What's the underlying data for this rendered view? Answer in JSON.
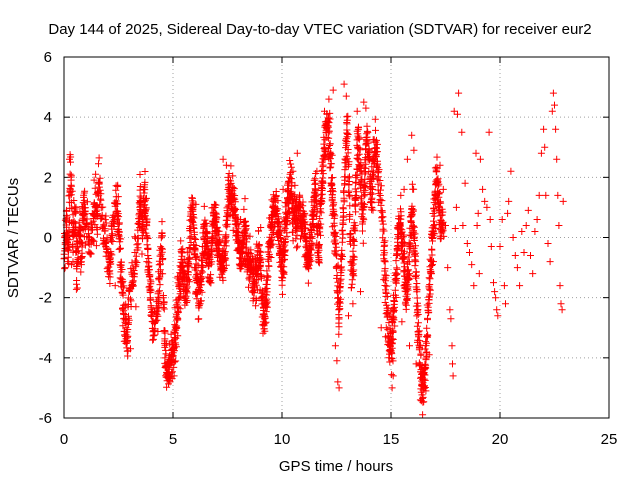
{
  "chart_data": {
    "type": "scatter",
    "title": "Day 144 of 2025, Sidereal Day-to-day VTEC variation (SDTVAR) for receiver eur2",
    "xlabel": "GPS time / hours",
    "ylabel": "SDTVAR / TECUs",
    "xlim": [
      0,
      25
    ],
    "ylim": [
      -6,
      6
    ],
    "xticks": [
      0,
      5,
      10,
      15,
      20,
      25
    ],
    "yticks": [
      -6,
      -4,
      -2,
      0,
      2,
      4,
      6
    ],
    "grid": true,
    "marker": "plus",
    "series": [
      {
        "name": "SDTVAR",
        "color": "#ff0000",
        "trace": [
          [
            0.0,
            -0.8
          ],
          [
            0.1,
            0.5
          ],
          [
            0.2,
            -0.5
          ],
          [
            0.3,
            2.5
          ],
          [
            0.4,
            -0.2
          ],
          [
            0.5,
            0.8
          ],
          [
            0.6,
            -1.0
          ],
          [
            0.7,
            0.3
          ],
          [
            0.8,
            -0.6
          ],
          [
            0.9,
            1.2
          ],
          [
            1.0,
            0.5
          ],
          [
            1.2,
            -0.2
          ],
          [
            1.4,
            1.0
          ],
          [
            1.5,
            0.6
          ],
          [
            1.6,
            1.8
          ],
          [
            1.8,
            0.3
          ],
          [
            2.0,
            -0.7
          ],
          [
            2.1,
            -1.2
          ],
          [
            2.2,
            0.2
          ],
          [
            2.4,
            1.4
          ],
          [
            2.5,
            0.4
          ],
          [
            2.6,
            -1.0
          ],
          [
            2.7,
            -2.2
          ],
          [
            2.8,
            -3.0
          ],
          [
            2.9,
            -3.6
          ],
          [
            3.0,
            -2.0
          ],
          [
            3.2,
            -1.2
          ],
          [
            3.4,
            0.0
          ],
          [
            3.5,
            1.2
          ],
          [
            3.6,
            0.3
          ],
          [
            3.7,
            1.4
          ],
          [
            3.8,
            0.2
          ],
          [
            3.9,
            -1.2
          ],
          [
            4.0,
            -2.2
          ],
          [
            4.1,
            -3.0
          ],
          [
            4.3,
            -2.4
          ],
          [
            4.4,
            -1.0
          ],
          [
            4.5,
            0.0
          ],
          [
            4.6,
            -3.2
          ],
          [
            4.7,
            -4.3
          ],
          [
            4.8,
            -4.5
          ],
          [
            4.9,
            -4.2
          ],
          [
            5.0,
            -3.8
          ],
          [
            5.1,
            -3.2
          ],
          [
            5.2,
            -2.4
          ],
          [
            5.3,
            -1.6
          ],
          [
            5.4,
            -0.6
          ],
          [
            5.5,
            -1.5
          ],
          [
            5.6,
            -2.0
          ],
          [
            5.7,
            -1.0
          ],
          [
            5.8,
            0.4
          ],
          [
            5.9,
            1.0
          ],
          [
            6.0,
            -0.4
          ],
          [
            6.1,
            -1.6
          ],
          [
            6.2,
            -2.0
          ],
          [
            6.3,
            -1.2
          ],
          [
            6.4,
            -0.2
          ],
          [
            6.5,
            0.3
          ],
          [
            6.6,
            -0.5
          ],
          [
            6.7,
            -1.2
          ],
          [
            6.8,
            0.2
          ],
          [
            6.9,
            0.8
          ],
          [
            7.0,
            0.0
          ],
          [
            7.1,
            -0.3
          ],
          [
            7.2,
            -0.8
          ],
          [
            7.3,
            -1.0
          ],
          [
            7.4,
            -0.4
          ],
          [
            7.5,
            0.8
          ],
          [
            7.6,
            1.8
          ],
          [
            7.7,
            1.0
          ],
          [
            7.8,
            1.3
          ],
          [
            7.9,
            0.5
          ],
          [
            8.0,
            -0.3
          ],
          [
            8.1,
            -0.8
          ],
          [
            8.2,
            -0.2
          ],
          [
            8.3,
            0.3
          ],
          [
            8.4,
            -0.6
          ],
          [
            8.5,
            -1.0
          ],
          [
            8.6,
            -0.8
          ],
          [
            8.7,
            -1.6
          ],
          [
            8.8,
            -1.2
          ],
          [
            8.9,
            -0.8
          ],
          [
            9.0,
            -0.5
          ],
          [
            9.1,
            -2.2
          ],
          [
            9.2,
            -2.7
          ],
          [
            9.3,
            -1.6
          ],
          [
            9.4,
            -0.5
          ],
          [
            9.5,
            0.3
          ],
          [
            9.6,
            0.8
          ],
          [
            9.7,
            1.3
          ],
          [
            9.8,
            0.4
          ],
          [
            9.9,
            -0.4
          ],
          [
            10.0,
            -1.2
          ],
          [
            10.1,
            -0.5
          ],
          [
            10.2,
            0.6
          ],
          [
            10.3,
            1.4
          ],
          [
            10.4,
            1.8
          ],
          [
            10.5,
            0.6
          ],
          [
            10.6,
            1.0
          ],
          [
            10.7,
            0.4
          ],
          [
            10.8,
            1.2
          ],
          [
            10.9,
            0.2
          ],
          [
            11.0,
            0.6
          ],
          [
            11.1,
            -0.2
          ],
          [
            11.2,
            -0.8
          ],
          [
            11.3,
            -0.2
          ],
          [
            11.4,
            0.6
          ],
          [
            11.5,
            1.6
          ],
          [
            11.6,
            0.8
          ],
          [
            11.7,
            -0.6
          ],
          [
            11.8,
            1.4
          ],
          [
            11.9,
            2.4
          ],
          [
            12.0,
            3.4
          ],
          [
            12.1,
            3.9
          ],
          [
            12.2,
            2.8
          ],
          [
            12.3,
            1.6
          ],
          [
            12.4,
            0.4
          ],
          [
            12.5,
            -0.8
          ],
          [
            12.6,
            -2.6
          ],
          [
            12.7,
            -1.2
          ],
          [
            12.8,
            0.6
          ],
          [
            12.9,
            2.6
          ],
          [
            13.0,
            3.6
          ],
          [
            13.1,
            1.0
          ],
          [
            13.2,
            -1.4
          ],
          [
            13.3,
            -0.4
          ],
          [
            13.4,
            1.8
          ],
          [
            13.5,
            3.4
          ],
          [
            13.6,
            2.2
          ],
          [
            13.7,
            0.6
          ],
          [
            13.8,
            2.0
          ],
          [
            13.9,
            3.6
          ],
          [
            14.0,
            2.4
          ],
          [
            14.1,
            1.0
          ],
          [
            14.2,
            2.4
          ],
          [
            14.3,
            3.2
          ],
          [
            14.4,
            2.0
          ],
          [
            14.6,
            0.6
          ],
          [
            14.7,
            -0.6
          ],
          [
            14.8,
            -2.2
          ],
          [
            14.9,
            -3.2
          ],
          [
            15.0,
            -3.7
          ],
          [
            15.1,
            -3.0
          ],
          [
            15.2,
            -1.6
          ],
          [
            15.3,
            -0.4
          ],
          [
            15.4,
            0.8
          ],
          [
            15.5,
            0.0
          ],
          [
            15.6,
            -1.0
          ],
          [
            15.7,
            -2.0
          ],
          [
            15.8,
            -1.4
          ],
          [
            15.9,
            0.2
          ],
          [
            16.0,
            1.0
          ],
          [
            16.1,
            -0.6
          ],
          [
            16.2,
            -2.2
          ],
          [
            16.3,
            -3.6
          ],
          [
            16.4,
            -4.6
          ],
          [
            16.5,
            -5.2
          ],
          [
            16.6,
            -4.0
          ],
          [
            16.7,
            -2.6
          ],
          [
            16.8,
            -1.2
          ],
          [
            16.9,
            -0.2
          ],
          [
            17.0,
            1.0
          ],
          [
            17.1,
            2.0
          ],
          [
            17.2,
            1.2
          ],
          [
            17.3,
            0.2
          ],
          [
            17.4,
            0.6
          ]
        ],
        "scatter": [
          [
            0.05,
            -1.0
          ],
          [
            0.12,
            0.9
          ],
          [
            0.25,
            2.6
          ],
          [
            0.35,
            -0.9
          ],
          [
            0.55,
            1.0
          ],
          [
            0.8,
            -0.9
          ],
          [
            1.45,
            2.1
          ],
          [
            1.9,
            -0.2
          ],
          [
            2.35,
            -1.6
          ],
          [
            3.05,
            -3.7
          ],
          [
            3.3,
            -2.3
          ],
          [
            3.65,
            1.6
          ],
          [
            4.2,
            -2.8
          ],
          [
            5.05,
            -4.6
          ],
          [
            5.65,
            -2.1
          ],
          [
            6.05,
            1.1
          ],
          [
            6.3,
            -2.1
          ],
          [
            6.9,
            1.1
          ],
          [
            7.3,
            2.6
          ],
          [
            7.45,
            2.4
          ],
          [
            7.55,
            1.9
          ],
          [
            8.1,
            0.6
          ],
          [
            9.15,
            -2.8
          ],
          [
            9.6,
            1.2
          ],
          [
            10.05,
            1.6
          ],
          [
            10.5,
            2.2
          ],
          [
            10.7,
            2.8
          ],
          [
            11.3,
            0.0
          ],
          [
            11.6,
            2.2
          ],
          [
            11.95,
            4.2
          ],
          [
            12.15,
            4.6
          ],
          [
            12.35,
            4.9
          ],
          [
            12.45,
            -3.6
          ],
          [
            12.52,
            -4.1
          ],
          [
            12.56,
            -4.8
          ],
          [
            12.62,
            -5.0
          ],
          [
            12.85,
            5.1
          ],
          [
            12.95,
            4.7
          ],
          [
            13.05,
            -2.6
          ],
          [
            13.25,
            -2.2
          ],
          [
            13.45,
            4.2
          ],
          [
            13.6,
            -1.8
          ],
          [
            13.75,
            4.5
          ],
          [
            13.85,
            4.3
          ],
          [
            14.15,
            1.6
          ],
          [
            14.55,
            -3.0
          ],
          [
            14.75,
            -3.3
          ],
          [
            14.9,
            -4.0
          ],
          [
            15.05,
            -5.0
          ],
          [
            15.1,
            -4.6
          ],
          [
            15.25,
            -0.6
          ],
          [
            15.45,
            1.4
          ],
          [
            15.5,
            -2.8
          ],
          [
            15.6,
            1.6
          ],
          [
            15.75,
            2.6
          ],
          [
            15.85,
            -3.6
          ],
          [
            15.95,
            3.4
          ],
          [
            16.05,
            2.9
          ],
          [
            16.15,
            -4.2
          ],
          [
            16.35,
            -5.4
          ],
          [
            16.45,
            -4.9
          ],
          [
            16.6,
            -5.1
          ],
          [
            16.75,
            -3.9
          ],
          [
            16.95,
            -0.8
          ],
          [
            17.05,
            0.3
          ],
          [
            17.25,
            2.4
          ],
          [
            17.4,
            1.6
          ],
          [
            17.5,
            0.4
          ],
          [
            17.6,
            -1.0
          ],
          [
            17.7,
            -2.4
          ],
          [
            17.75,
            -2.7
          ],
          [
            17.8,
            -3.6
          ],
          [
            17.82,
            -4.2
          ],
          [
            17.85,
            -4.6
          ],
          [
            17.9,
            4.2
          ],
          [
            17.95,
            0.3
          ],
          [
            18.0,
            1.0
          ],
          [
            18.05,
            4.1
          ],
          [
            18.1,
            4.8
          ],
          [
            18.25,
            3.5
          ],
          [
            18.3,
            0.4
          ],
          [
            18.4,
            1.8
          ],
          [
            18.5,
            -0.2
          ],
          [
            18.6,
            -0.5
          ],
          [
            18.7,
            -0.9
          ],
          [
            18.8,
            -1.6
          ],
          [
            18.9,
            2.8
          ],
          [
            18.95,
            0.4
          ],
          [
            19.0,
            0.8
          ],
          [
            19.05,
            -1.2
          ],
          [
            19.1,
            2.6
          ],
          [
            19.2,
            1.6
          ],
          [
            19.3,
            1.2
          ],
          [
            19.4,
            1.0
          ],
          [
            19.5,
            3.5
          ],
          [
            19.55,
            0.6
          ],
          [
            19.6,
            -0.3
          ],
          [
            19.7,
            -1.5
          ],
          [
            19.75,
            -1.8
          ],
          [
            19.8,
            -2.0
          ],
          [
            19.85,
            -2.4
          ],
          [
            19.9,
            -2.6
          ],
          [
            20.0,
            -0.3
          ],
          [
            20.1,
            0.6
          ],
          [
            20.2,
            -1.6
          ],
          [
            20.25,
            -2.2
          ],
          [
            20.35,
            0.8
          ],
          [
            20.4,
            1.2
          ],
          [
            20.5,
            2.2
          ],
          [
            20.6,
            0.0
          ],
          [
            20.7,
            -0.6
          ],
          [
            20.8,
            -1.0
          ],
          [
            20.9,
            -1.6
          ],
          [
            21.0,
            0.2
          ],
          [
            21.1,
            -0.5
          ],
          [
            21.2,
            0.4
          ],
          [
            21.3,
            0.9
          ],
          [
            21.4,
            -0.6
          ],
          [
            21.5,
            -1.2
          ],
          [
            21.6,
            0.2
          ],
          [
            21.7,
            0.6
          ],
          [
            21.8,
            1.4
          ],
          [
            21.9,
            2.8
          ],
          [
            22.0,
            3.6
          ],
          [
            22.05,
            3.0
          ],
          [
            22.1,
            1.4
          ],
          [
            22.2,
            -0.2
          ],
          [
            22.3,
            -0.8
          ],
          [
            22.4,
            4.2
          ],
          [
            22.45,
            4.8
          ],
          [
            22.5,
            4.4
          ],
          [
            22.55,
            3.6
          ],
          [
            22.6,
            2.6
          ],
          [
            22.65,
            1.4
          ],
          [
            22.7,
            0.4
          ],
          [
            22.75,
            -1.6
          ],
          [
            22.8,
            -2.2
          ],
          [
            22.85,
            -2.4
          ],
          [
            22.9,
            1.2
          ]
        ]
      }
    ]
  }
}
